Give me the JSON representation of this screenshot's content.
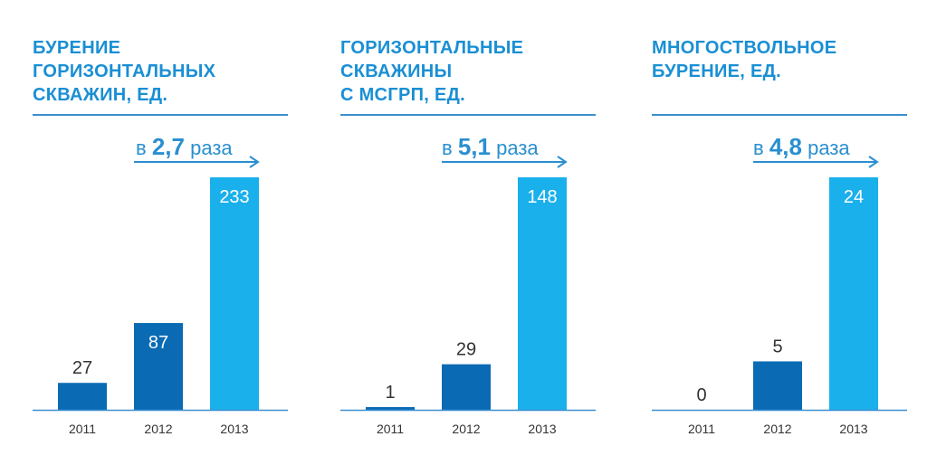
{
  "colors": {
    "title": "#1a8fd4",
    "rule": "#3a8fcf",
    "bar_2011": "#0a6bb4",
    "bar_2012": "#0a6bb4",
    "bar_2013": "#1ab0eb",
    "value_dark": "#333333",
    "value_on_bar": "#ffffff",
    "axis_text": "#333333",
    "growth_text": "#2a8fd0"
  },
  "chart_data": [
    {
      "type": "bar",
      "title": "БУРЕНИЕ\nГОРИЗОНТАЛЬНЫХ\nСКВАЖИН, ЕД.",
      "categories": [
        "2011",
        "2012",
        "2013"
      ],
      "values": [
        27,
        87,
        233
      ],
      "value_labels": [
        "27",
        "87",
        "233"
      ],
      "growth": {
        "prefix": "в",
        "factor": "2,7",
        "suffix": "раза"
      },
      "ylim": [
        0,
        260
      ]
    },
    {
      "type": "bar",
      "title": "ГОРИЗОНТАЛЬНЫЕ\nСКВАЖИНЫ\nС МСГРП, ЕД.",
      "categories": [
        "2011",
        "2012",
        "2013"
      ],
      "values": [
        1,
        29,
        148
      ],
      "value_labels": [
        "1",
        "29",
        "148"
      ],
      "growth": {
        "prefix": "в",
        "factor": "5,1",
        "suffix": "раза"
      },
      "ylim": [
        0,
        165
      ]
    },
    {
      "type": "bar",
      "title": "МНОГОСТВОЛЬНОЕ\nБУРЕНИЕ, ЕД.",
      "categories": [
        "2011",
        "2012",
        "2013"
      ],
      "values": [
        0,
        5,
        24
      ],
      "value_labels": [
        "0",
        "5",
        "24"
      ],
      "growth": {
        "prefix": "в",
        "factor": "4,8",
        "suffix": "раза"
      },
      "ylim": [
        0,
        27
      ]
    }
  ]
}
